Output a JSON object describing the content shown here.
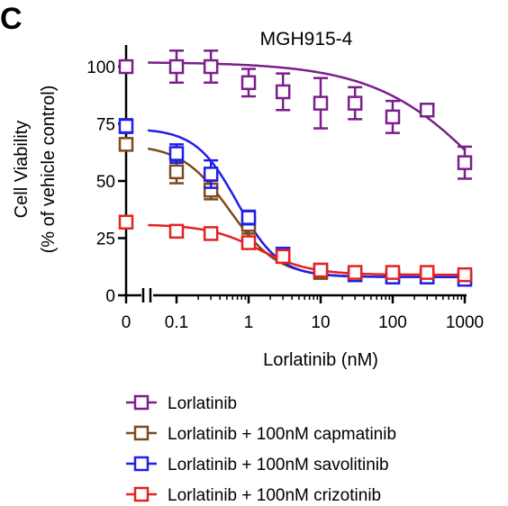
{
  "panel_label": "C",
  "chart_data": {
    "type": "scatter",
    "title": "MGH915-4",
    "xlabel": "Lorlatinib (nM)",
    "ylabel_line1": "Cell Viability",
    "ylabel_line2": "(% of vehicle control)",
    "x_scale": "log with broken axis at 0",
    "x_ticks": [
      "0",
      "0.1",
      "1",
      "10",
      "100",
      "1000"
    ],
    "y_ticks": [
      "0",
      "25",
      "50",
      "75",
      "100"
    ],
    "ylim": [
      0,
      110
    ],
    "legend_position": "bottom",
    "x_values": [
      0,
      0.1,
      0.3,
      1,
      3,
      10,
      30,
      100,
      300,
      1000
    ],
    "series": [
      {
        "name": "Lorlatinib",
        "color": "#7B1F8A",
        "marker": "open-square",
        "y": [
          100,
          100,
          100,
          93,
          89,
          84,
          84,
          78,
          81,
          58
        ],
        "err": [
          2,
          7,
          7,
          6,
          8,
          11,
          7,
          7,
          2,
          7
        ],
        "fit": {
          "top": 102,
          "bottom": 0,
          "ic50": 2500,
          "hill": 0.55
        }
      },
      {
        "name": "Lorlatinib + 100nM capmatinib",
        "color": "#7B4A1E",
        "marker": "open-square",
        "y": [
          66,
          54,
          46,
          31,
          17,
          10,
          9,
          8,
          8,
          8
        ],
        "err": [
          2,
          5,
          4,
          4,
          2,
          2,
          1,
          1,
          1,
          1
        ],
        "fit": {
          "top": 66,
          "bottom": 8,
          "ic50": 0.55,
          "hill": 1.3
        }
      },
      {
        "name": "Lorlatinib + 100nM savolitinib",
        "color": "#1F1FE8",
        "marker": "open-square",
        "y": [
          74,
          62,
          53,
          34,
          18,
          11,
          9,
          8,
          8,
          7
        ],
        "err": [
          3,
          4,
          6,
          3,
          2,
          2,
          1,
          1,
          1,
          1
        ],
        "fit": {
          "top": 73,
          "bottom": 8,
          "ic50": 0.7,
          "hill": 1.5
        }
      },
      {
        "name": "Lorlatinib + 100nM crizotinib",
        "color": "#E52121",
        "marker": "open-square",
        "y": [
          32,
          28,
          27,
          23,
          17,
          11,
          10,
          10,
          10,
          9
        ],
        "err": [
          1,
          1,
          1,
          2,
          1,
          1,
          1,
          1,
          1,
          1
        ],
        "fit": {
          "top": 31,
          "bottom": 9,
          "ic50": 1.4,
          "hill": 1.2
        }
      }
    ]
  }
}
